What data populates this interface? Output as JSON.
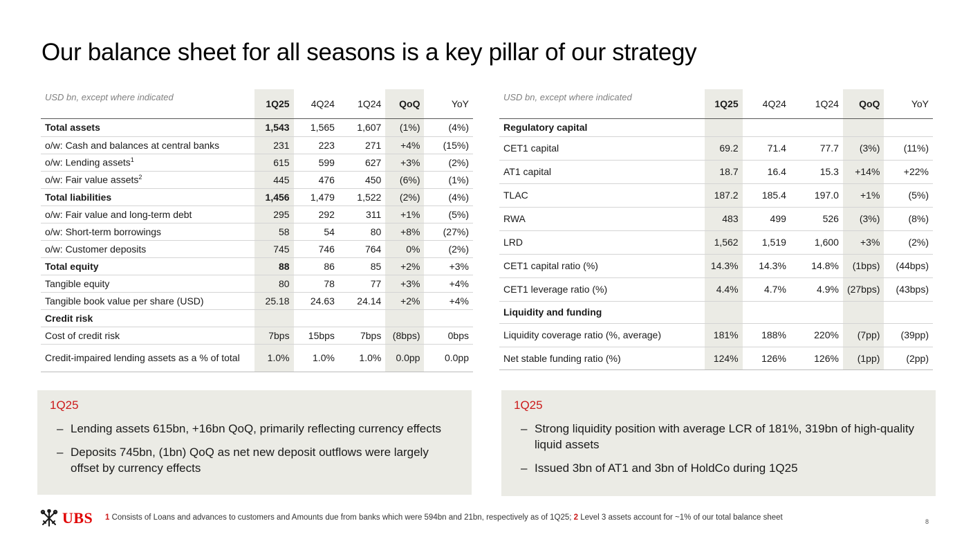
{
  "title": "Our balance sheet for all seasons is a key pillar of our strategy",
  "left_table": {
    "unit_label": "USD bn, except where indicated",
    "columns": [
      "1Q25",
      "4Q24",
      "1Q24",
      "QoQ",
      "YoY"
    ],
    "rows": [
      {
        "label": "Total assets",
        "sup": "",
        "values": [
          "1,543",
          "1,565",
          "1,607",
          "(1%)",
          "(4%)"
        ]
      },
      {
        "label": "o/w: Cash and balances at central banks",
        "sup": "",
        "values": [
          "231",
          "223",
          "271",
          "+4%",
          "(15%)"
        ]
      },
      {
        "label": "o/w: Lending assets",
        "sup": "1",
        "values": [
          "615",
          "599",
          "627",
          "+3%",
          "(2%)"
        ]
      },
      {
        "label": "o/w: Fair value assets",
        "sup": "2",
        "values": [
          "445",
          "476",
          "450",
          "(6%)",
          "(1%)"
        ]
      },
      {
        "label": "Total liabilities",
        "sup": "",
        "values": [
          "1,456",
          "1,479",
          "1,522",
          "(2%)",
          "(4%)"
        ]
      },
      {
        "label": "o/w: Fair value and long-term debt",
        "sup": "",
        "values": [
          "295",
          "292",
          "311",
          "+1%",
          "(5%)"
        ]
      },
      {
        "label": "o/w: Short-term borrowings",
        "sup": "",
        "values": [
          "58",
          "54",
          "80",
          "+8%",
          "(27%)"
        ]
      },
      {
        "label": "o/w: Customer deposits",
        "sup": "",
        "values": [
          "745",
          "746",
          "764",
          "0%",
          "(2%)"
        ]
      },
      {
        "label": "Total equity",
        "sup": "",
        "values": [
          "88",
          "86",
          "85",
          "+2%",
          "+3%"
        ]
      },
      {
        "label": "Tangible equity",
        "sup": "",
        "values": [
          "80",
          "78",
          "77",
          "+3%",
          "+4%"
        ]
      },
      {
        "label": "Tangible book value per share (USD)",
        "sup": "",
        "values": [
          "25.18",
          "24.63",
          "24.14",
          "+2%",
          "+4%"
        ]
      },
      {
        "label": "Credit risk",
        "sup": "",
        "values": [
          "",
          "",
          "",
          "",
          ""
        ]
      },
      {
        "label": "Cost of credit risk",
        "sup": "",
        "values": [
          "7bps",
          "15bps",
          "7bps",
          "(8bps)",
          "0bps"
        ]
      },
      {
        "label": "Credit-impaired lending assets as a % of total",
        "sup": "",
        "values": [
          "1.0%",
          "1.0%",
          "1.0%",
          "0.0pp",
          "0.0pp"
        ]
      }
    ]
  },
  "right_table": {
    "unit_label": "USD bn, except where indicated",
    "columns": [
      "1Q25",
      "4Q24",
      "1Q24",
      "QoQ",
      "YoY"
    ],
    "rows": [
      {
        "label": "Regulatory capital",
        "values": [
          "",
          "",
          "",
          "",
          ""
        ]
      },
      {
        "label": "CET1 capital",
        "values": [
          "69.2",
          "71.4",
          "77.7",
          "(3%)",
          "(11%)"
        ]
      },
      {
        "label": "AT1 capital",
        "values": [
          "18.7",
          "16.4",
          "15.3",
          "+14%",
          "+22%"
        ]
      },
      {
        "label": "TLAC",
        "values": [
          "187.2",
          "185.4",
          "197.0",
          "+1%",
          "(5%)"
        ]
      },
      {
        "label": "RWA",
        "values": [
          "483",
          "499",
          "526",
          "(3%)",
          "(8%)"
        ]
      },
      {
        "label": "LRD",
        "values": [
          "1,562",
          "1,519",
          "1,600",
          "+3%",
          "(2%)"
        ]
      },
      {
        "label": "CET1 capital ratio (%)",
        "values": [
          "14.3%",
          "14.3%",
          "14.8%",
          "(1bps)",
          "(44bps)"
        ]
      },
      {
        "label": "CET1 leverage ratio (%)",
        "values": [
          "4.4%",
          "4.7%",
          "4.9%",
          "(27bps)",
          "(43bps)"
        ]
      },
      {
        "label": "Liquidity and funding",
        "values": [
          "",
          "",
          "",
          "",
          ""
        ]
      },
      {
        "label": "Liquidity coverage ratio (%, average)",
        "values": [
          "181%",
          "188%",
          "220%",
          "(7pp)",
          "(39pp)"
        ]
      },
      {
        "label": "Net stable funding ratio (%)",
        "values": [
          "124%",
          "126%",
          "126%",
          "(1pp)",
          "(2pp)"
        ]
      }
    ]
  },
  "box_left": {
    "heading": "1Q25",
    "bullets": [
      "Lending assets 615bn, +16bn QoQ, primarily reflecting currency effects",
      "Deposits 745bn, (1bn) QoQ as net new deposit outflows were largely offset by currency effects"
    ]
  },
  "box_right": {
    "heading": "1Q25",
    "bullets": [
      "Strong liquidity position with average LCR of 181%, 319bn of high-quality liquid assets",
      "Issued 3bn of AT1 and 3bn of HoldCo during 1Q25"
    ]
  },
  "footer": {
    "logo_text": "UBS",
    "logo_icon": "ubs-keys-icon",
    "fn1_num": "1",
    "fn1_text": " Consists of Loans and advances to customers and Amounts due from banks which were 594bn and 21bn, respectively as of 1Q25; ",
    "fn2_num": "2",
    "fn2_text": " Level 3 assets account for ~1% of our total balance sheet",
    "page_number": "8"
  },
  "colors": {
    "accent_red": "#cc1a1a",
    "highlight": "#ebebe5",
    "logo_red": "#e00000"
  }
}
